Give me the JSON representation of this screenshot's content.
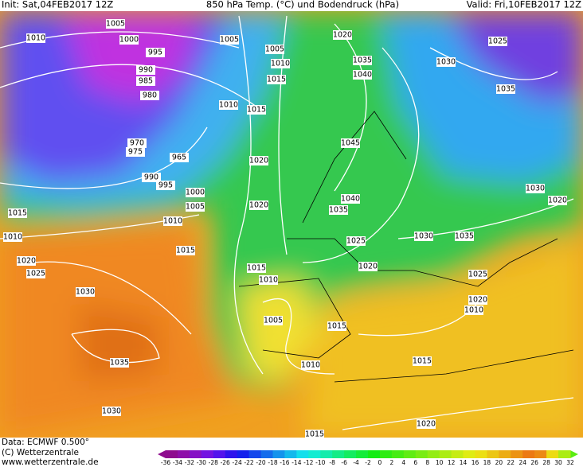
{
  "header": {
    "init": "Init: Sat,04FEB2017 12Z",
    "title": "850 hPa Temp. (°C) und Bodendruck (hPa)",
    "valid": "Valid: Fri,10FEB2017 12Z"
  },
  "isobar_labels": [
    "1005",
    "1010",
    "1000",
    "995",
    "990",
    "985",
    "980",
    "970",
    "975",
    "965",
    "990",
    "995",
    "1000",
    "1005",
    "1015",
    "1010",
    "1010",
    "1015",
    "1020",
    "1025",
    "1030",
    "1035",
    "1030",
    "1005",
    "1005",
    "1010",
    "1015",
    "1010",
    "1015",
    "1020",
    "1020",
    "1020",
    "1035",
    "1040",
    "1030",
    "1025",
    "1035",
    "1045",
    "1040",
    "1035",
    "1025",
    "1030",
    "1035",
    "1030",
    "1020",
    "1020",
    "1015",
    "1010",
    "1025",
    "1020",
    "1015",
    "1005",
    "1010",
    "1015",
    "1020",
    "1015",
    "1010"
  ],
  "footer": {
    "data": "Data: ECMWF  0.500°",
    "copyright": "(C) Wetterzentrale",
    "url": "www.wetterzentrale.de"
  },
  "colorbar": {
    "ticks": [
      -36,
      -34,
      -32,
      -30,
      -28,
      -26,
      -24,
      -22,
      -20,
      -18,
      -16,
      -14,
      -12,
      -10,
      -8,
      -6,
      -4,
      -2,
      0,
      2,
      4,
      6,
      8,
      10,
      12,
      14,
      16,
      18,
      20,
      22,
      24,
      26,
      28,
      30,
      32
    ]
  }
}
